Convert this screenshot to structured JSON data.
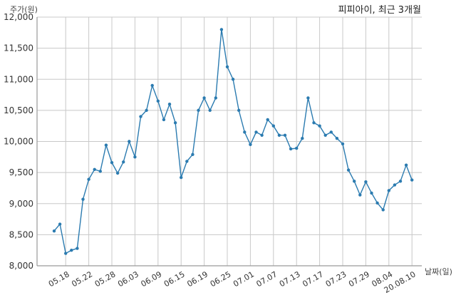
{
  "chart_data": {
    "type": "line",
    "title": "피피아이, 최근 3개월",
    "ylabel": "주가(원)",
    "xlabel": "날짜(일)",
    "ylim": [
      8000,
      12000
    ],
    "yticks": [
      8000,
      8500,
      9000,
      9500,
      10000,
      10500,
      11000,
      11500,
      12000
    ],
    "ytick_labels": [
      "8,000",
      "8,500",
      "9,000",
      "9,500",
      "10,000",
      "10,500",
      "11,000",
      "11,500",
      "12,000"
    ],
    "xtick_labels": [
      "05.18",
      "05.22",
      "05.28",
      "06.03",
      "06.09",
      "06.15",
      "06.19",
      "06.25",
      "07.01",
      "07.07",
      "07.13",
      "07.17",
      "07.23",
      "07.29",
      "08.04",
      "20.08.10"
    ],
    "xtick_index": [
      2,
      6,
      10,
      14,
      18,
      22,
      26,
      30,
      34,
      38,
      42,
      46,
      50,
      54,
      58,
      62
    ],
    "grid": true,
    "x": [
      "05.14",
      "05.15",
      "05.18",
      "05.19",
      "05.20",
      "05.21",
      "05.22",
      "05.25",
      "05.26",
      "05.27",
      "05.28",
      "05.29",
      "06.01",
      "06.02",
      "06.03",
      "06.04",
      "06.05",
      "06.08",
      "06.09",
      "06.10",
      "06.11",
      "06.12",
      "06.15",
      "06.16",
      "06.17",
      "06.18",
      "06.19",
      "06.22",
      "06.23",
      "06.24",
      "06.25",
      "06.26",
      "06.29",
      "06.30",
      "07.01",
      "07.02",
      "07.03",
      "07.06",
      "07.07",
      "07.08",
      "07.09",
      "07.10",
      "07.13",
      "07.14",
      "07.15",
      "07.16",
      "07.17",
      "07.20",
      "07.21",
      "07.22",
      "07.23",
      "07.24",
      "07.27",
      "07.28",
      "07.29",
      "07.30",
      "07.31",
      "08.03",
      "08.04",
      "08.05",
      "08.06",
      "08.07",
      "20.08.10"
    ],
    "values": [
      8560,
      8670,
      8200,
      8250,
      8280,
      9070,
      9390,
      9550,
      9520,
      9940,
      9660,
      9490,
      9670,
      10000,
      9750,
      10400,
      10500,
      10900,
      10650,
      10350,
      10600,
      10300,
      9420,
      9680,
      9790,
      10500,
      10700,
      10500,
      10700,
      11800,
      11200,
      11000,
      10500,
      10150,
      9950,
      10150,
      10100,
      10350,
      10250,
      10100,
      10100,
      9880,
      9890,
      10050,
      10700,
      10300,
      10250,
      10100,
      10150,
      10050,
      9960,
      9540,
      9360,
      9140,
      9350,
      9170,
      9010,
      8900,
      9210,
      9300,
      9360,
      9620,
      9380
    ]
  }
}
